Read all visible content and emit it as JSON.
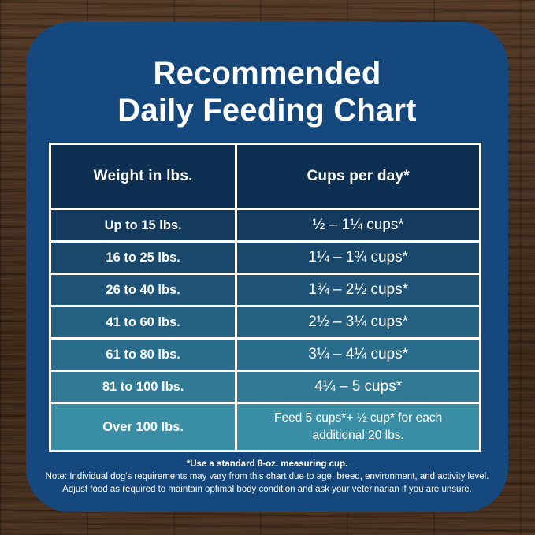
{
  "title": {
    "line1": "Recommended",
    "line2": "Daily Feeding Chart"
  },
  "table": {
    "headers": [
      "Weight in lbs.",
      "Cups per day*"
    ],
    "rows": [
      {
        "weight": "Up to 15 lbs.",
        "cups": "½ – 1¼ cups*",
        "color": "#143A5E"
      },
      {
        "weight": "16 to 25 lbs.",
        "cups": "1¼ – 1¾ cups*",
        "color": "#19486B"
      },
      {
        "weight": "26 to 40 lbs.",
        "cups": "1¾ – 2½ cups*",
        "color": "#1F5377"
      },
      {
        "weight": "41 to 60 lbs.",
        "cups": "2½ – 3¼ cups*",
        "color": "#246080"
      },
      {
        "weight": "61 to 80 lbs.",
        "cups": "3¼ – 4¼ cups*",
        "color": "#2A6C8B"
      },
      {
        "weight": "81 to 100 lbs.",
        "cups": "4¼ – 5 cups*",
        "color": "#317995"
      },
      {
        "weight": "Over 100 lbs.",
        "cups": "Feed 5 cups*+ ½ cup* for each additional 20 lbs.",
        "color": "#3A8FA7"
      }
    ]
  },
  "footer": {
    "note1": "*Use a standard 8-oz. measuring cup.",
    "note2": "Note: Individual dog's requirements may vary from this chart due to age, breed, environment, and activity level.",
    "note3": "Adjust food as required to maintain optimal body condition and ask your veterinarian if you are unsure."
  },
  "colors": {
    "card_background": "#15497D",
    "header_cell": "#0D2F52",
    "table_border": "#FFFFFF",
    "text": "#FFFFFF",
    "wood_base": "#46301D"
  },
  "chart_data": {
    "type": "table",
    "title": "Recommended Daily Feeding Chart",
    "columns": [
      "Weight in lbs.",
      "Cups per day*"
    ],
    "rows": [
      [
        "Up to 15 lbs.",
        "½ – 1¼ cups*"
      ],
      [
        "16 to 25 lbs.",
        "1¼ – 1¾ cups*"
      ],
      [
        "26 to 40 lbs.",
        "1¾ – 2½ cups*"
      ],
      [
        "41 to 60 lbs.",
        "2½ – 3¼ cups*"
      ],
      [
        "61 to 80 lbs.",
        "3¼ – 4¼ cups*"
      ],
      [
        "81 to 100 lbs.",
        "4¼ – 5 cups*"
      ],
      [
        "Over 100 lbs.",
        "Feed 5 cups*+ ½ cup* for each additional 20 lbs."
      ]
    ],
    "footnotes": [
      "*Use a standard 8-oz. measuring cup.",
      "Note: Individual dog's requirements may vary from this chart due to age, breed, environment, and activity level.",
      "Adjust food as required to maintain optimal body condition and ask your veterinarian if you are unsure."
    ]
  }
}
